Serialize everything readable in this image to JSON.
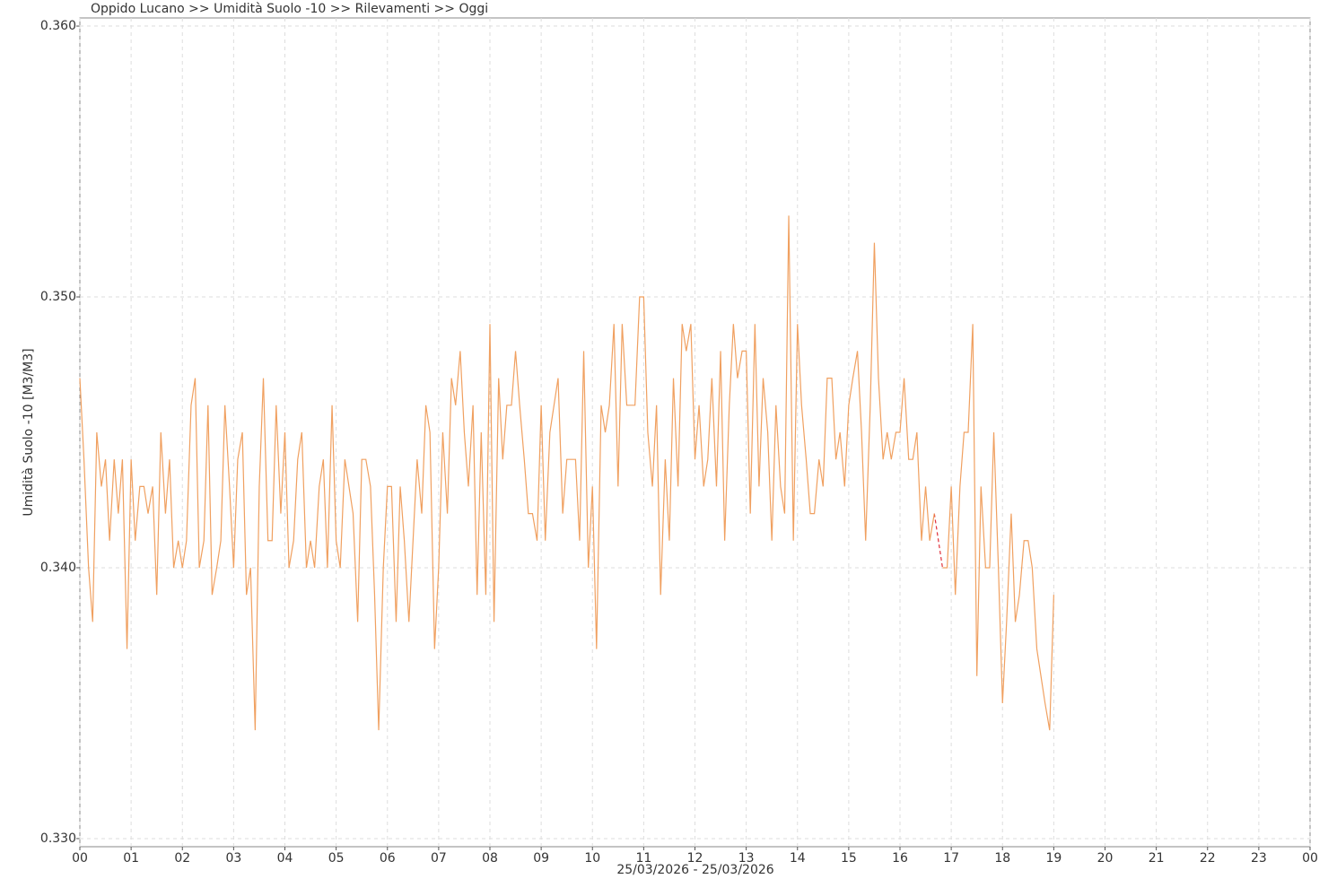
{
  "chart_data": {
    "type": "line",
    "title": "Oppido Lucano >> Umidità Suolo -10 >> Rilevamenti >> Oggi",
    "x_label": "25/03/2026 - 25/03/2026",
    "y_label": "Umidità Suolo -10 [M3/M3]",
    "xlim": [
      0,
      24
    ],
    "ylim": [
      0.3297,
      0.3603
    ],
    "xticks": [
      {
        "value": 0,
        "label": "00"
      },
      {
        "value": 1,
        "label": "01"
      },
      {
        "value": 2,
        "label": "02"
      },
      {
        "value": 3,
        "label": "03"
      },
      {
        "value": 4,
        "label": "04"
      },
      {
        "value": 5,
        "label": "05"
      },
      {
        "value": 6,
        "label": "06"
      },
      {
        "value": 7,
        "label": "07"
      },
      {
        "value": 8,
        "label": "08"
      },
      {
        "value": 9,
        "label": "09"
      },
      {
        "value": 10,
        "label": "10"
      },
      {
        "value": 11,
        "label": "11"
      },
      {
        "value": 12,
        "label": "12"
      },
      {
        "value": 13,
        "label": "13"
      },
      {
        "value": 14,
        "label": "14"
      },
      {
        "value": 15,
        "label": "15"
      },
      {
        "value": 16,
        "label": "16"
      },
      {
        "value": 17,
        "label": "17"
      },
      {
        "value": 18,
        "label": "18"
      },
      {
        "value": 19,
        "label": "19"
      },
      {
        "value": 20,
        "label": "20"
      },
      {
        "value": 21,
        "label": "21"
      },
      {
        "value": 22,
        "label": "22"
      },
      {
        "value": 23,
        "label": "23"
      },
      {
        "value": 24,
        "label": "00"
      }
    ],
    "yticks": [
      {
        "value": 0.33,
        "label": "0.330"
      },
      {
        "value": 0.34,
        "label": "0.340"
      },
      {
        "value": 0.35,
        "label": "0.350"
      },
      {
        "value": 0.36,
        "label": "0.360"
      }
    ],
    "grid": true,
    "x": [
      0,
      0.08,
      0.17,
      0.25,
      0.33,
      0.42,
      0.5,
      0.58,
      0.67,
      0.75,
      0.83,
      0.92,
      1,
      1.08,
      1.17,
      1.25,
      1.33,
      1.42,
      1.5,
      1.58,
      1.67,
      1.75,
      1.83,
      1.92,
      2,
      2.08,
      2.17,
      2.25,
      2.33,
      2.42,
      2.5,
      2.58,
      2.67,
      2.75,
      2.83,
      2.92,
      3,
      3.08,
      3.17,
      3.25,
      3.33,
      3.42,
      3.5,
      3.58,
      3.67,
      3.75,
      3.83,
      3.92,
      4,
      4.08,
      4.17,
      4.25,
      4.33,
      4.42,
      4.5,
      4.58,
      4.67,
      4.75,
      4.83,
      4.92,
      5,
      5.08,
      5.17,
      5.25,
      5.33,
      5.42,
      5.5,
      5.58,
      5.67,
      5.75,
      5.83,
      5.92,
      6,
      6.08,
      6.17,
      6.25,
      6.33,
      6.42,
      6.5,
      6.58,
      6.67,
      6.75,
      6.83,
      6.92,
      7,
      7.08,
      7.17,
      7.25,
      7.33,
      7.42,
      7.5,
      7.58,
      7.67,
      7.75,
      7.83,
      7.92,
      8,
      8.08,
      8.17,
      8.25,
      8.33,
      8.42,
      8.5,
      8.58,
      8.67,
      8.75,
      8.83,
      8.92,
      9,
      9.08,
      9.17,
      9.25,
      9.33,
      9.42,
      9.5,
      9.58,
      9.67,
      9.75,
      9.83,
      9.92,
      10,
      10.08,
      10.17,
      10.25,
      10.33,
      10.42,
      10.5,
      10.58,
      10.67,
      10.75,
      10.83,
      10.92,
      11,
      11.08,
      11.17,
      11.25,
      11.33,
      11.42,
      11.5,
      11.58,
      11.67,
      11.75,
      11.83,
      11.92,
      12,
      12.08,
      12.17,
      12.25,
      12.33,
      12.42,
      12.5,
      12.58,
      12.67,
      12.75,
      12.83,
      12.92,
      13,
      13.08,
      13.17,
      13.25,
      13.33,
      13.42,
      13.5,
      13.58,
      13.67,
      13.75,
      13.83,
      13.92,
      14,
      14.08,
      14.17,
      14.25,
      14.33,
      14.42,
      14.5,
      14.58,
      14.67,
      14.75,
      14.83,
      14.92,
      15,
      15.08,
      15.17,
      15.25,
      15.33,
      15.42,
      15.5,
      15.58,
      15.67,
      15.75,
      15.83,
      15.92,
      16,
      16.08,
      16.17,
      16.25,
      16.33,
      16.42,
      16.5,
      16.58,
      16.67,
      16.75,
      16.83,
      16.92,
      17,
      17.08,
      17.17,
      17.25,
      17.33,
      17.42,
      17.5,
      17.58,
      17.67,
      17.75,
      17.83,
      17.92,
      18,
      18.08,
      18.17,
      18.25,
      18.33,
      18.42,
      18.5,
      18.58,
      18.67,
      18.75,
      18.83,
      18.92,
      19
    ],
    "series": [
      {
        "color": "#f0a060",
        "gap_color": "#e0303a",
        "values": [
          0.347,
          0.344,
          0.34,
          0.338,
          0.345,
          0.343,
          0.344,
          0.341,
          0.344,
          0.342,
          0.344,
          0.337,
          0.344,
          0.341,
          0.343,
          0.343,
          0.342,
          0.343,
          0.339,
          0.345,
          0.342,
          0.344,
          0.34,
          0.341,
          0.34,
          0.341,
          0.346,
          0.347,
          0.34,
          0.341,
          0.346,
          0.339,
          0.34,
          0.341,
          0.346,
          0.343,
          0.34,
          0.344,
          0.345,
          0.339,
          0.34,
          0.334,
          0.343,
          0.347,
          0.341,
          0.341,
          0.346,
          0.342,
          0.345,
          0.34,
          0.341,
          0.344,
          0.345,
          0.34,
          0.341,
          0.34,
          0.343,
          0.344,
          0.34,
          0.346,
          0.341,
          0.34,
          0.344,
          0.343,
          0.342,
          0.338,
          0.344,
          0.344,
          0.343,
          0.339,
          0.334,
          0.34,
          0.343,
          0.343,
          0.338,
          0.343,
          0.341,
          0.338,
          0.341,
          0.344,
          0.342,
          0.346,
          0.345,
          0.337,
          0.34,
          0.345,
          0.342,
          0.347,
          0.346,
          0.348,
          0.345,
          0.343,
          0.346,
          0.339,
          0.345,
          0.339,
          0.349,
          0.338,
          0.347,
          0.344,
          0.346,
          0.346,
          0.348,
          0.346,
          0.344,
          0.342,
          0.342,
          0.341,
          0.346,
          0.341,
          0.345,
          0.346,
          0.347,
          0.342,
          0.344,
          0.344,
          0.344,
          0.341,
          0.348,
          0.34,
          0.343,
          0.337,
          0.346,
          0.345,
          0.346,
          0.349,
          0.343,
          0.349,
          0.346,
          0.346,
          0.346,
          0.35,
          0.35,
          0.345,
          0.343,
          0.346,
          0.339,
          0.344,
          0.341,
          0.347,
          0.343,
          0.349,
          0.348,
          0.349,
          0.344,
          0.346,
          0.343,
          0.344,
          0.347,
          0.343,
          0.348,
          0.341,
          0.346,
          0.349,
          0.347,
          0.348,
          0.348,
          0.342,
          0.349,
          0.343,
          0.347,
          0.345,
          0.341,
          0.346,
          0.343,
          0.342,
          0.353,
          0.341,
          0.349,
          0.346,
          0.344,
          0.342,
          0.342,
          0.344,
          0.343,
          0.347,
          0.347,
          0.344,
          0.345,
          0.343,
          0.346,
          0.347,
          0.348,
          0.345,
          0.341,
          0.346,
          0.352,
          0.347,
          0.344,
          0.345,
          0.344,
          0.345,
          0.345,
          0.347,
          0.344,
          0.344,
          0.345,
          0.341,
          0.343,
          0.341,
          0.342,
          null,
          0.34,
          0.34,
          0.343,
          0.339,
          0.343,
          0.345,
          0.345,
          0.349,
          0.336,
          0.343,
          0.34,
          0.34,
          0.345,
          0.34,
          0.335,
          0.338,
          0.342,
          0.338,
          0.339,
          0.341,
          0.341,
          0.34,
          0.337,
          0.336,
          0.335,
          0.334,
          0.339
        ]
      }
    ]
  }
}
